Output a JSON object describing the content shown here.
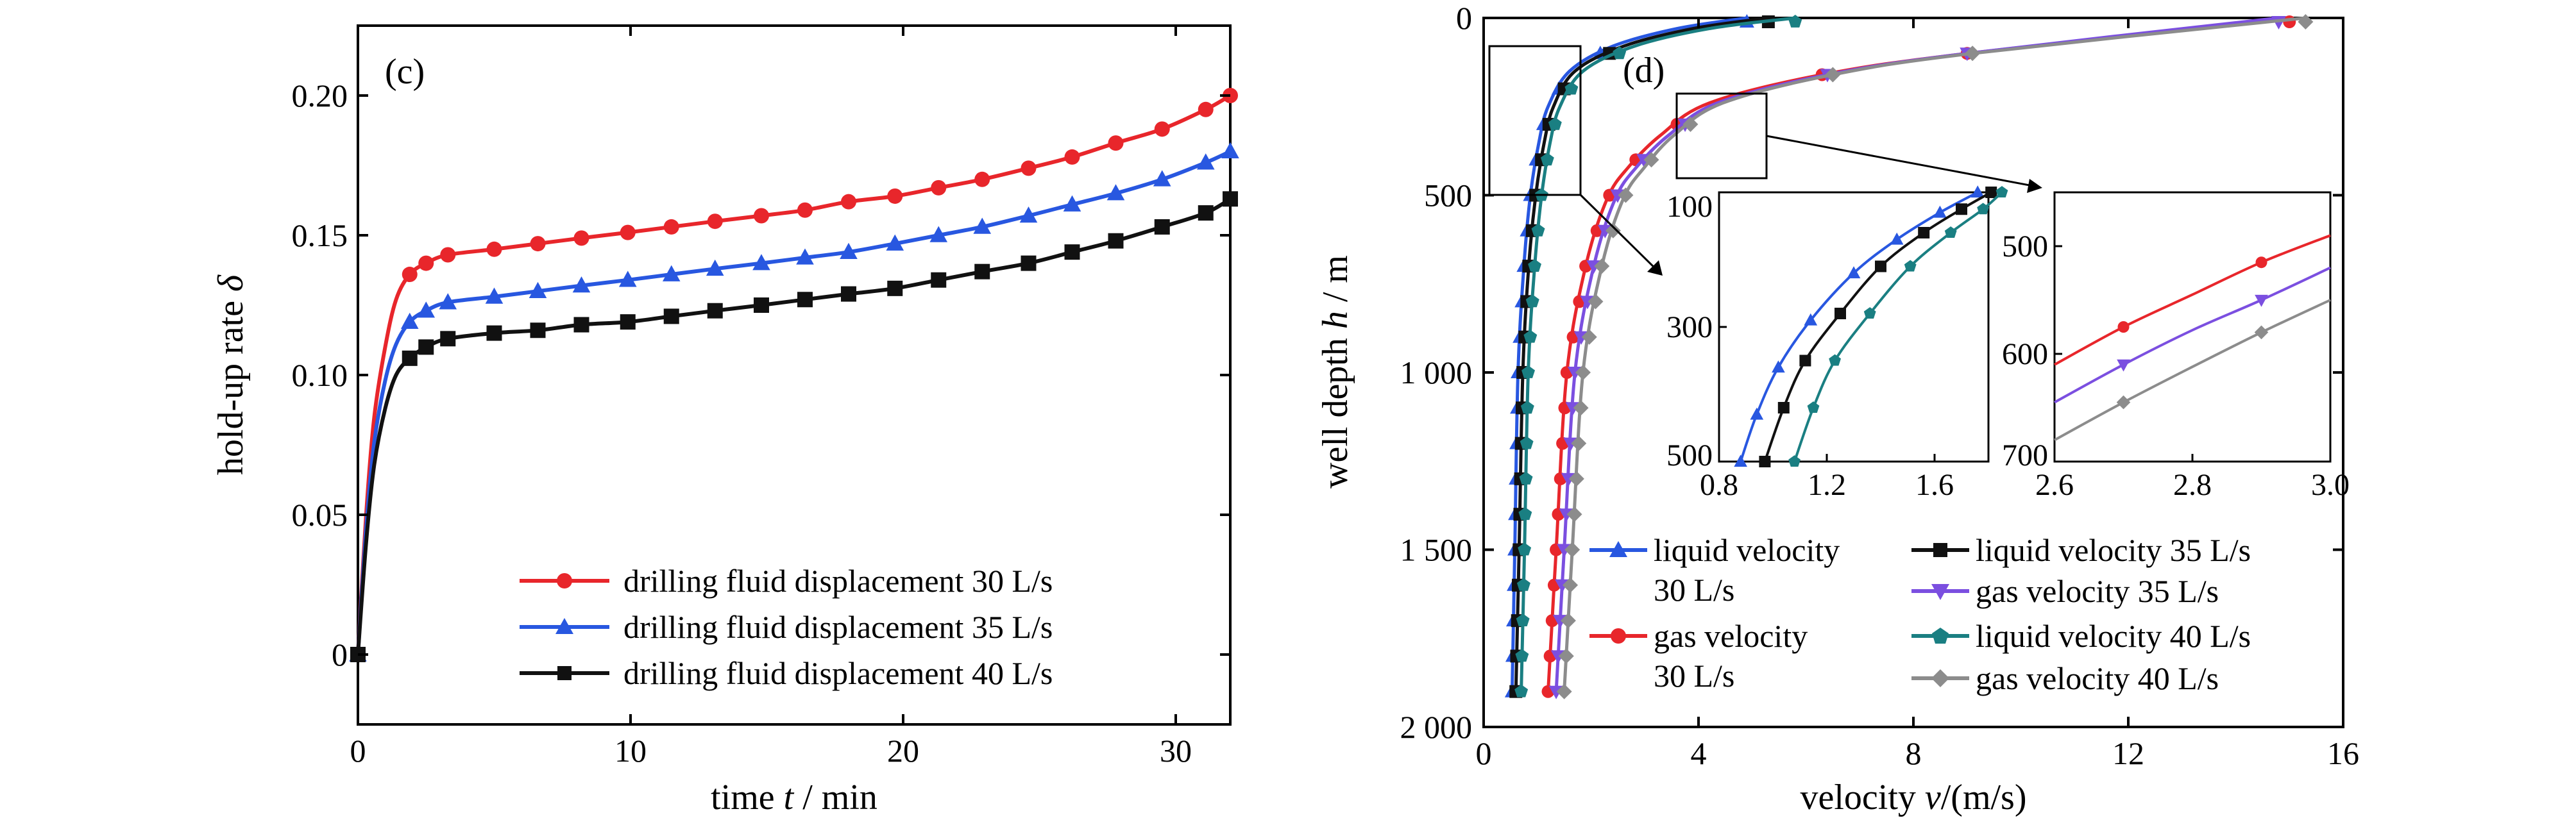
{
  "figure": {
    "panel_c_label": "(c)",
    "panel_d_label": "(d)"
  },
  "chart_data": [
    {
      "type": "line",
      "panel": "(c)",
      "xlabel_pre": "time ",
      "xlabel_var": "t",
      "xlabel_post": " / min",
      "ylabel_pre": "hold-up rate ",
      "ylabel_var": "δ",
      "xlim": [
        0,
        32
      ],
      "ylim": [
        -0.025,
        0.225
      ],
      "xticks": [
        0,
        10,
        20,
        30
      ],
      "xtick_labels": [
        "0",
        "10",
        "20",
        "30"
      ],
      "yticks": [
        0,
        0.05,
        0.1,
        0.15,
        0.2
      ],
      "ytick_labels": [
        "0",
        "0.05",
        "0.10",
        "0.15",
        "0.20"
      ],
      "legend_position": "bottom-right",
      "series": [
        {
          "name": "drilling fluid displacement 30 L/s",
          "color": "#e8262b",
          "marker": "circle",
          "x": [
            0,
            0.3,
            0.6,
            1.0,
            1.4,
            1.9,
            2.5,
            3.3,
            5.0,
            6.6,
            8.2,
            9.9,
            11.5,
            13.1,
            14.8,
            16.4,
            18.0,
            19.7,
            21.3,
            22.9,
            24.6,
            26.2,
            27.8,
            29.5,
            31.1,
            32.0
          ],
          "y": [
            0,
            0.05,
            0.085,
            0.11,
            0.127,
            0.136,
            0.14,
            0.143,
            0.145,
            0.147,
            0.149,
            0.151,
            0.153,
            0.155,
            0.157,
            0.159,
            0.162,
            0.164,
            0.167,
            0.17,
            0.174,
            0.178,
            0.183,
            0.188,
            0.195,
            0.2
          ]
        },
        {
          "name": "drilling fluid displacement 35 L/s",
          "color": "#2857e0",
          "marker": "triangle",
          "x": [
            0,
            0.3,
            0.6,
            1.0,
            1.4,
            1.9,
            2.5,
            3.3,
            5.0,
            6.6,
            8.2,
            9.9,
            11.5,
            13.1,
            14.8,
            16.4,
            18.0,
            19.7,
            21.3,
            22.9,
            24.6,
            26.2,
            27.8,
            29.5,
            31.1,
            32.0
          ],
          "y": [
            0,
            0.045,
            0.076,
            0.098,
            0.111,
            0.119,
            0.123,
            0.126,
            0.128,
            0.13,
            0.132,
            0.134,
            0.136,
            0.138,
            0.14,
            0.142,
            0.144,
            0.147,
            0.15,
            0.153,
            0.157,
            0.161,
            0.165,
            0.17,
            0.176,
            0.18
          ]
        },
        {
          "name": "drilling fluid displacement 40 L/s",
          "color": "#111111",
          "marker": "square",
          "x": [
            0,
            0.3,
            0.6,
            1.0,
            1.4,
            1.9,
            2.5,
            3.3,
            5.0,
            6.6,
            8.2,
            9.9,
            11.5,
            13.1,
            14.8,
            16.4,
            18.0,
            19.7,
            21.3,
            22.9,
            24.6,
            26.2,
            27.8,
            29.5,
            31.1,
            32.0
          ],
          "y": [
            0,
            0.04,
            0.068,
            0.088,
            0.1,
            0.106,
            0.11,
            0.113,
            0.115,
            0.116,
            0.118,
            0.119,
            0.121,
            0.123,
            0.125,
            0.127,
            0.129,
            0.131,
            0.134,
            0.137,
            0.14,
            0.144,
            0.148,
            0.153,
            0.158,
            0.163
          ]
        }
      ]
    },
    {
      "type": "line",
      "panel": "(d)",
      "xlabel_pre": "velocity ",
      "xlabel_var": "v",
      "xlabel_post": "/(m/s)",
      "ylabel_pre": "well depth ",
      "ylabel_var": "h",
      "ylabel_post": " / m",
      "xlim": [
        0,
        16
      ],
      "ylim": [
        0,
        2000
      ],
      "y_inverted": true,
      "xticks": [
        0,
        4,
        8,
        12,
        16
      ],
      "xtick_labels": [
        "0",
        "4",
        "8",
        "12",
        "16"
      ],
      "yticks": [
        0,
        500,
        1000,
        1500,
        2000
      ],
      "ytick_labels": [
        "0",
        "500",
        "1 000",
        "1 500",
        "2 000"
      ],
      "legend_position": "bottom-center",
      "series": [
        {
          "name": "liquid velocity 30 L/s",
          "legend_line1": "liquid velocity",
          "legend_line2": "30 L/s",
          "color": "#2857e0",
          "marker": "triangle",
          "x": [
            0.53,
            0.58,
            0.64,
            0.75,
            0.87,
            1.03,
            1.2,
            1.6,
            2.4,
            3.6,
            4.9
          ],
          "y": [
            1900,
            1500,
            1000,
            700,
            500,
            350,
            250,
            150,
            80,
            30,
            0
          ]
        },
        {
          "name": "liquid velocity 35 L/s",
          "legend_line1": "liquid velocity 35 L/s",
          "color": "#111111",
          "marker": "square",
          "x": [
            0.6,
            0.66,
            0.73,
            0.84,
            0.97,
            1.13,
            1.3,
            1.7,
            2.6,
            3.9,
            5.3
          ],
          "y": [
            1900,
            1500,
            1000,
            700,
            500,
            350,
            250,
            150,
            80,
            30,
            0
          ]
        },
        {
          "name": "liquid velocity 40 L/s",
          "legend_line1": "liquid velocity 40 L/s",
          "color": "#1a7f82",
          "marker": "pentagon",
          "x": [
            0.7,
            0.76,
            0.83,
            0.95,
            1.08,
            1.24,
            1.42,
            1.85,
            2.8,
            4.2,
            5.8
          ],
          "y": [
            1900,
            1500,
            1000,
            700,
            500,
            350,
            250,
            150,
            80,
            30,
            0
          ]
        },
        {
          "name": "gas velocity 30 L/s",
          "legend_line1": "gas velocity",
          "legend_line2": "30 L/s",
          "color": "#e8262b",
          "marker": "circle",
          "x": [
            1.2,
            1.35,
            1.55,
            1.9,
            2.3,
            2.7,
            3.3,
            4.2,
            6.3,
            9.0,
            15.0
          ],
          "y": [
            1900,
            1500,
            1000,
            700,
            510,
            420,
            330,
            240,
            160,
            100,
            0
          ]
        },
        {
          "name": "gas velocity 35 L/s",
          "legend_line1": "gas velocity 35 L/s",
          "color": "#7b4fe0",
          "marker": "triangle-down",
          "x": [
            1.35,
            1.5,
            1.7,
            2.05,
            2.45,
            2.85,
            3.45,
            4.35,
            6.4,
            9.0,
            14.8
          ],
          "y": [
            1900,
            1500,
            1000,
            700,
            510,
            420,
            330,
            240,
            160,
            100,
            0
          ]
        },
        {
          "name": "gas velocity 40 L/s",
          "legend_line1": "gas velocity 40 L/s",
          "color": "#8c8c8c",
          "marker": "diamond",
          "x": [
            1.5,
            1.65,
            1.85,
            2.2,
            2.6,
            3.0,
            3.55,
            4.45,
            6.5,
            9.1,
            15.3
          ],
          "y": [
            1900,
            1500,
            1000,
            700,
            510,
            420,
            330,
            240,
            160,
            100,
            0
          ]
        }
      ],
      "insets": [
        {
          "xlim": [
            0.8,
            1.8
          ],
          "ylim": [
            100,
            500
          ],
          "xticks": [
            0.8,
            1.2,
            1.6
          ],
          "xtick_labels": [
            "0.8",
            "1.2",
            "1.6"
          ],
          "yticks": [
            100,
            300,
            500
          ],
          "ytick_labels": [
            "100",
            "300",
            "500"
          ],
          "series": [
            {
              "name": "liquid velocity 30 L/s",
              "x": [
                0.88,
                0.94,
                1.02,
                1.14,
                1.3,
                1.46,
                1.62,
                1.76
              ],
              "y": [
                500,
                430,
                360,
                290,
                220,
                170,
                130,
                100
              ]
            },
            {
              "name": "liquid velocity 35 L/s",
              "x": [
                0.97,
                1.04,
                1.12,
                1.25,
                1.4,
                1.56,
                1.7,
                1.81
              ],
              "y": [
                500,
                420,
                350,
                280,
                210,
                160,
                125,
                100
              ]
            },
            {
              "name": "liquid velocity 40 L/s",
              "x": [
                1.08,
                1.15,
                1.23,
                1.36,
                1.51,
                1.66,
                1.78,
                1.85
              ],
              "y": [
                500,
                420,
                350,
                280,
                210,
                160,
                125,
                100
              ]
            }
          ]
        },
        {
          "xlim": [
            2.6,
            3.0
          ],
          "ylim": [
            450,
            700
          ],
          "xticks": [
            2.6,
            2.8,
            3.0
          ],
          "xtick_labels": [
            "2.6",
            "2.8",
            "3.0"
          ],
          "yticks": [
            500,
            600,
            700
          ],
          "ytick_labels": [
            "500",
            "600",
            "700"
          ],
          "series": [
            {
              "name": "gas velocity 30 L/s",
              "x": [
                2.6,
                2.7,
                2.8,
                2.9,
                3.0
              ],
              "y": [
                610,
                575,
                545,
                515,
                490
              ]
            },
            {
              "name": "gas velocity 35 L/s",
              "x": [
                2.6,
                2.7,
                2.8,
                2.9,
                3.0
              ],
              "y": [
                645,
                610,
                578,
                550,
                520
              ]
            },
            {
              "name": "gas velocity 40 L/s",
              "x": [
                2.6,
                2.7,
                2.8,
                2.9,
                3.0
              ],
              "y": [
                680,
                645,
                612,
                580,
                550
              ]
            }
          ]
        }
      ]
    }
  ]
}
